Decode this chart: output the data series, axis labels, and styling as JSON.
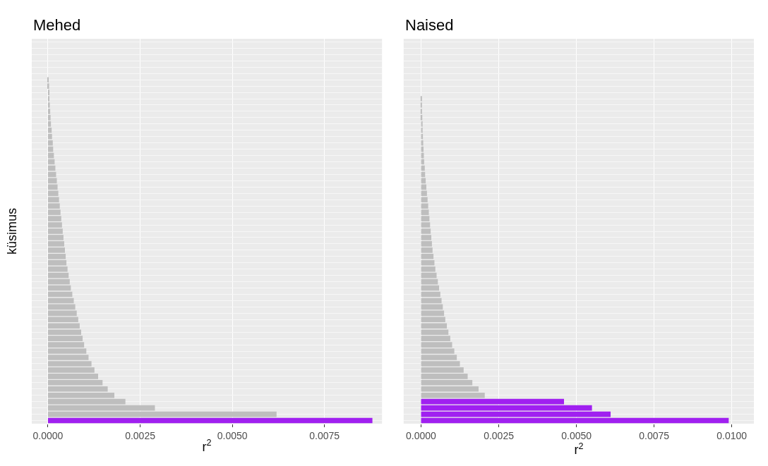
{
  "chart_data": [
    {
      "type": "bar",
      "orientation": "horizontal",
      "title": "Mehed",
      "xlabel": "r$^{2}$",
      "ylabel": "küsimus",
      "grid": true,
      "tick_labels": "x",
      "categories": [
        null,
        null,
        null,
        null,
        null,
        null,
        null,
        null,
        null,
        null,
        null,
        null,
        null,
        null,
        null,
        null,
        null,
        null,
        null,
        null,
        null,
        null,
        null,
        null,
        null,
        null,
        null,
        null,
        null,
        null,
        null,
        null,
        null,
        null,
        null,
        null,
        null,
        null,
        null,
        null,
        null,
        null,
        null,
        null,
        null,
        null,
        null,
        null,
        null,
        null,
        null,
        null,
        null,
        null,
        null,
        null,
        null,
        null,
        null,
        null,
        null
      ],
      "values": [
        0,
        0,
        0,
        0,
        0,
        0,
        2e-05,
        3e-05,
        4e-05,
        4e-05,
        5e-05,
        6e-05,
        7e-05,
        8e-05,
        0.0001,
        0.00011,
        0.00013,
        0.00014,
        0.00016,
        0.00018,
        0.0002,
        0.00022,
        0.00024,
        0.00026,
        0.00028,
        0.0003,
        0.00032,
        0.00034,
        0.00036,
        0.00038,
        0.0004,
        0.00042,
        0.00044,
        0.00046,
        0.00048,
        0.0005,
        0.00053,
        0.00056,
        0.00059,
        0.00062,
        0.00066,
        0.0007,
        0.00074,
        0.00078,
        0.00082,
        0.00086,
        0.0009,
        0.00094,
        0.00098,
        0.00104,
        0.0011,
        0.00118,
        0.00126,
        0.00136,
        0.00148,
        0.00162,
        0.0018,
        0.0021,
        0.0029,
        0.0062,
        0.0088
      ],
      "colors": [
        "#bebebe",
        "#bebebe",
        "#bebebe",
        "#bebebe",
        "#bebebe",
        "#bebebe",
        "#bebebe",
        "#bebebe",
        "#bebebe",
        "#bebebe",
        "#bebebe",
        "#bebebe",
        "#bebebe",
        "#bebebe",
        "#bebebe",
        "#bebebe",
        "#bebebe",
        "#bebebe",
        "#bebebe",
        "#bebebe",
        "#bebebe",
        "#bebebe",
        "#bebebe",
        "#bebebe",
        "#bebebe",
        "#bebebe",
        "#bebebe",
        "#bebebe",
        "#bebebe",
        "#bebebe",
        "#bebebe",
        "#bebebe",
        "#bebebe",
        "#bebebe",
        "#bebebe",
        "#bebebe",
        "#bebebe",
        "#bebebe",
        "#bebebe",
        "#bebebe",
        "#bebebe",
        "#bebebe",
        "#bebebe",
        "#bebebe",
        "#bebebe",
        "#bebebe",
        "#bebebe",
        "#bebebe",
        "#bebebe",
        "#bebebe",
        "#bebebe",
        "#bebebe",
        "#bebebe",
        "#bebebe",
        "#bebebe",
        "#bebebe",
        "#bebebe",
        "#bebebe",
        "#bebebe",
        "#bebebe",
        "#a020f0"
      ],
      "xlim": [
        -0.00044,
        0.00906
      ],
      "xticks": [
        {
          "value": 0,
          "label": "0.0000"
        },
        {
          "value": 0.0025,
          "label": "0.0025"
        },
        {
          "value": 0.005,
          "label": "0.0050"
        },
        {
          "value": 0.0075,
          "label": "0.0075"
        }
      ]
    },
    {
      "type": "bar",
      "orientation": "horizontal",
      "title": "Naised",
      "xlabel": "r$^{2}$",
      "grid": true,
      "tick_labels": "x",
      "categories": [
        null,
        null,
        null,
        null,
        null,
        null,
        null,
        null,
        null,
        null,
        null,
        null,
        null,
        null,
        null,
        null,
        null,
        null,
        null,
        null,
        null,
        null,
        null,
        null,
        null,
        null,
        null,
        null,
        null,
        null,
        null,
        null,
        null,
        null,
        null,
        null,
        null,
        null,
        null,
        null,
        null,
        null,
        null,
        null,
        null,
        null,
        null,
        null,
        null,
        null,
        null,
        null,
        null,
        null,
        null,
        null,
        null,
        null,
        null,
        null,
        null
      ],
      "values": [
        0,
        0,
        0,
        0,
        0,
        0,
        0,
        0,
        0,
        2e-05,
        3e-05,
        3e-05,
        4e-05,
        5e-05,
        5e-05,
        6e-05,
        7e-05,
        8e-05,
        9e-05,
        0.0001,
        0.00012,
        0.00013,
        0.00015,
        0.00017,
        0.00019,
        0.00021,
        0.00023,
        0.00025,
        0.00027,
        0.00029,
        0.00031,
        0.00033,
        0.00035,
        0.00037,
        0.0004,
        0.00043,
        0.00046,
        0.0005,
        0.00054,
        0.00058,
        0.00062,
        0.00066,
        0.0007,
        0.00074,
        0.00078,
        0.00083,
        0.00088,
        0.00094,
        0.001,
        0.00107,
        0.00115,
        0.00125,
        0.00137,
        0.0015,
        0.00165,
        0.00185,
        0.00205,
        0.0046,
        0.0055,
        0.0061,
        0.0099
      ],
      "colors": [
        "#bebebe",
        "#bebebe",
        "#bebebe",
        "#bebebe",
        "#bebebe",
        "#bebebe",
        "#bebebe",
        "#bebebe",
        "#bebebe",
        "#bebebe",
        "#bebebe",
        "#bebebe",
        "#bebebe",
        "#bebebe",
        "#bebebe",
        "#bebebe",
        "#bebebe",
        "#bebebe",
        "#bebebe",
        "#bebebe",
        "#bebebe",
        "#bebebe",
        "#bebebe",
        "#bebebe",
        "#bebebe",
        "#bebebe",
        "#bebebe",
        "#bebebe",
        "#bebebe",
        "#bebebe",
        "#bebebe",
        "#bebebe",
        "#bebebe",
        "#bebebe",
        "#bebebe",
        "#bebebe",
        "#bebebe",
        "#bebebe",
        "#bebebe",
        "#bebebe",
        "#bebebe",
        "#bebebe",
        "#bebebe",
        "#bebebe",
        "#bebebe",
        "#bebebe",
        "#bebebe",
        "#bebebe",
        "#bebebe",
        "#bebebe",
        "#bebebe",
        "#bebebe",
        "#bebebe",
        "#bebebe",
        "#bebebe",
        "#bebebe",
        "#bebebe",
        "#a020f0",
        "#a020f0",
        "#a020f0",
        "#a020f0"
      ],
      "xlim": [
        -0.00056,
        0.01071
      ],
      "xticks": [
        {
          "value": 0,
          "label": "0.0000"
        },
        {
          "value": 0.0025,
          "label": "0.0025"
        },
        {
          "value": 0.005,
          "label": "0.0050"
        },
        {
          "value": 0.0075,
          "label": "0.0075"
        },
        {
          "value": 0.01,
          "label": "0.0100"
        }
      ]
    }
  ]
}
